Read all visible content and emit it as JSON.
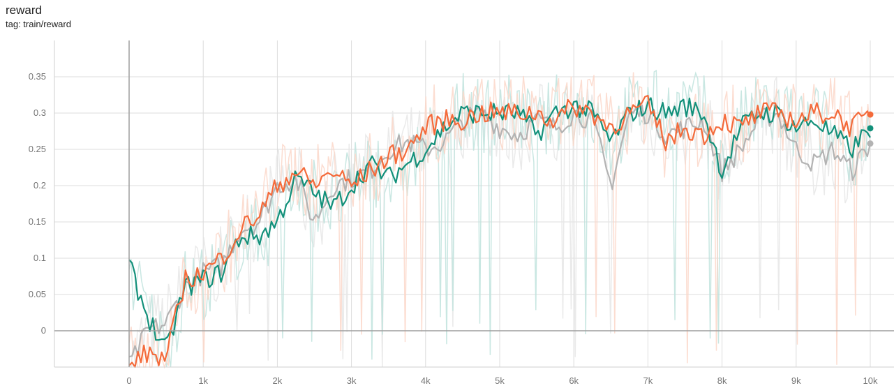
{
  "card": {
    "title": "reward",
    "tag": "tag: train/reward"
  },
  "chart_data": {
    "type": "line",
    "title": "reward",
    "subtitle": "tag: train/reward",
    "xlabel": "",
    "ylabel": "",
    "xlim": [
      -1000,
      10300
    ],
    "ylim": [
      -0.05,
      0.4
    ],
    "x_ticks": [
      {
        "v": 0,
        "label": "0"
      },
      {
        "v": 1000,
        "label": "1k"
      },
      {
        "v": 2000,
        "label": "2k"
      },
      {
        "v": 3000,
        "label": "3k"
      },
      {
        "v": 4000,
        "label": "4k"
      },
      {
        "v": 5000,
        "label": "5k"
      },
      {
        "v": 6000,
        "label": "6k"
      },
      {
        "v": 7000,
        "label": "7k"
      },
      {
        "v": 8000,
        "label": "8k"
      },
      {
        "v": 9000,
        "label": "9k"
      },
      {
        "v": 10000,
        "label": "10k"
      }
    ],
    "y_ticks": [
      {
        "v": 0,
        "label": "0"
      },
      {
        "v": 0.05,
        "label": "0.05"
      },
      {
        "v": 0.1,
        "label": "0.1"
      },
      {
        "v": 0.15,
        "label": "0.15"
      },
      {
        "v": 0.2,
        "label": "0.2"
      },
      {
        "v": 0.25,
        "label": "0.25"
      },
      {
        "v": 0.3,
        "label": "0.3"
      },
      {
        "v": 0.35,
        "label": "0.35"
      }
    ],
    "grid": true,
    "legend": "none",
    "series": [
      {
        "color": "#b3b3b3",
        "raw_color": "#e6e6e6",
        "end": 0.258,
        "x": [
          0,
          250,
          500,
          750,
          1000,
          1250,
          1500,
          1750,
          2000,
          2250,
          2500,
          2750,
          3000,
          3250,
          3500,
          3750,
          4000,
          4250,
          4500,
          4750,
          5000,
          5250,
          5500,
          5750,
          6000,
          6250,
          6500,
          6750,
          7000,
          7250,
          7500,
          7750,
          8000,
          8250,
          8500,
          8750,
          9000,
          9250,
          9500,
          9750,
          10000
        ],
        "y": [
          -0.05,
          0.0,
          0.01,
          0.06,
          0.08,
          0.09,
          0.14,
          0.15,
          0.2,
          0.21,
          0.15,
          0.2,
          0.21,
          0.22,
          0.25,
          0.26,
          0.25,
          0.26,
          0.29,
          0.3,
          0.28,
          0.27,
          0.29,
          0.28,
          0.3,
          0.29,
          0.2,
          0.3,
          0.3,
          0.27,
          0.28,
          0.29,
          0.22,
          0.25,
          0.29,
          0.3,
          0.25,
          0.23,
          0.25,
          0.22,
          0.258
        ]
      },
      {
        "color": "#12907a",
        "raw_color": "#bfe3dd",
        "end": 0.279,
        "x": [
          0,
          250,
          500,
          750,
          1000,
          1250,
          1500,
          1750,
          2000,
          2250,
          2500,
          2750,
          3000,
          3250,
          3500,
          3750,
          4000,
          4250,
          4500,
          4750,
          5000,
          5250,
          5500,
          5750,
          6000,
          6250,
          6500,
          6750,
          7000,
          7250,
          7500,
          7750,
          8000,
          8250,
          8500,
          8750,
          9000,
          9250,
          9500,
          9750,
          10000
        ],
        "y": [
          0.09,
          0.02,
          -0.03,
          0.06,
          0.07,
          0.08,
          0.13,
          0.13,
          0.15,
          0.21,
          0.19,
          0.17,
          0.2,
          0.23,
          0.21,
          0.23,
          0.25,
          0.28,
          0.3,
          0.3,
          0.3,
          0.3,
          0.27,
          0.3,
          0.31,
          0.3,
          0.26,
          0.3,
          0.31,
          0.3,
          0.31,
          0.3,
          0.22,
          0.28,
          0.3,
          0.3,
          0.28,
          0.29,
          0.27,
          0.25,
          0.279
        ]
      },
      {
        "color": "#f46a3a",
        "raw_color": "#fcd7c9",
        "end": 0.298,
        "x": [
          0,
          250,
          500,
          750,
          1000,
          1250,
          1500,
          1750,
          2000,
          2250,
          2500,
          2750,
          3000,
          3250,
          3500,
          3750,
          4000,
          4250,
          4500,
          4750,
          5000,
          5250,
          5500,
          5750,
          6000,
          6250,
          6500,
          6750,
          7000,
          7250,
          7500,
          7750,
          8000,
          8250,
          8500,
          8750,
          9000,
          9250,
          9500,
          9750,
          10000
        ],
        "y": [
          -0.05,
          -0.03,
          -0.04,
          0.07,
          0.08,
          0.1,
          0.14,
          0.16,
          0.2,
          0.22,
          0.2,
          0.22,
          0.2,
          0.22,
          0.24,
          0.25,
          0.28,
          0.29,
          0.29,
          0.3,
          0.3,
          0.3,
          0.3,
          0.29,
          0.31,
          0.3,
          0.28,
          0.3,
          0.31,
          0.26,
          0.28,
          0.27,
          0.29,
          0.28,
          0.3,
          0.3,
          0.29,
          0.3,
          0.3,
          0.28,
          0.298
        ]
      }
    ]
  }
}
